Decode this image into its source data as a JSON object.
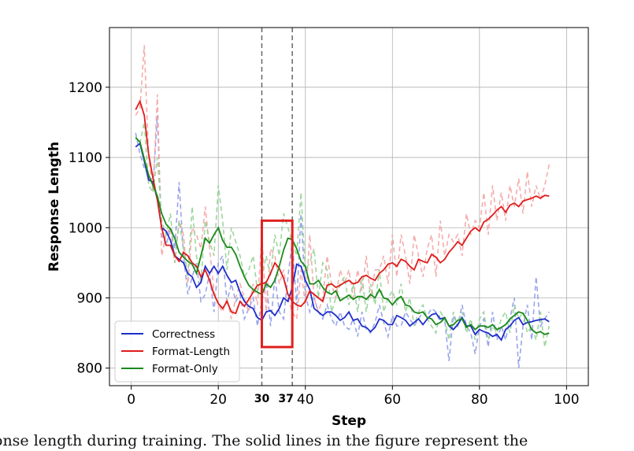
{
  "chart_data": {
    "type": "line",
    "xlabel": "Step",
    "ylabel": "Response Length",
    "xlim": [
      -5,
      105
    ],
    "ylim": [
      775,
      1285
    ],
    "xticks": [
      0,
      20,
      40,
      60,
      80,
      100
    ],
    "yticks": [
      800,
      900,
      1000,
      1100,
      1200
    ],
    "grid": true,
    "legend_position": "lower-left",
    "markers": {
      "lines": [
        30,
        37
      ],
      "labels": [
        "30",
        "37"
      ],
      "highlight_box": {
        "x": [
          30,
          37
        ],
        "y": [
          830,
          1010
        ],
        "color": "#e02020"
      }
    },
    "series": [
      {
        "name": "Correctness",
        "color": "#1f2ecc",
        "raw_color": "#8e9be8",
        "x": [
          1,
          2,
          3,
          4,
          5,
          6,
          7,
          8,
          9,
          10,
          11,
          12,
          13,
          14,
          15,
          16,
          17,
          18,
          19,
          20,
          21,
          22,
          23,
          24,
          25,
          26,
          27,
          28,
          29,
          30,
          31,
          32,
          33,
          34,
          35,
          36,
          37,
          38,
          39,
          40,
          41,
          42,
          43,
          44,
          45,
          46,
          47,
          48,
          49,
          50,
          51,
          52,
          53,
          54,
          55,
          56,
          57,
          58,
          59,
          60,
          61,
          62,
          63,
          64,
          65,
          66,
          67,
          68,
          69,
          70,
          71,
          72,
          73,
          74,
          75,
          76,
          77,
          78,
          79,
          80,
          81,
          82,
          83,
          84,
          85,
          86,
          87,
          88,
          89,
          90,
          91,
          92,
          93,
          94,
          95,
          96
        ],
        "values": [
          1115,
          1120,
          1095,
          1068,
          1065,
          1040,
          1000,
          995,
          982,
          960,
          955,
          950,
          935,
          930,
          915,
          922,
          945,
          935,
          945,
          935,
          945,
          932,
          922,
          925,
          908,
          895,
          888,
          885,
          872,
          868,
          880,
          882,
          875,
          885,
          900,
          895,
          915,
          948,
          945,
          925,
          912,
          885,
          880,
          875,
          880,
          880,
          875,
          868,
          872,
          880,
          868,
          870,
          860,
          858,
          852,
          858,
          870,
          868,
          862,
          862,
          875,
          872,
          868,
          860,
          865,
          870,
          862,
          870,
          876,
          878,
          870,
          872,
          860,
          855,
          862,
          872,
          860,
          860,
          848,
          855,
          852,
          850,
          845,
          848,
          840,
          855,
          860,
          868,
          872,
          862,
          865,
          866,
          868,
          869,
          870,
          866
        ],
        "raw": [
          1135,
          1105,
          1085,
          1075,
          1060,
          1160,
          990,
          975,
          1000,
          970,
          1065,
          960,
          905,
          930,
          950,
          895,
          905,
          935,
          880,
          950,
          960,
          895,
          920,
          895,
          905,
          870,
          885,
          900,
          860,
          895,
          925,
          860,
          930,
          880,
          870,
          930,
          980,
          890,
          1020,
          905,
          880,
          900,
          880,
          870,
          890,
          870,
          860,
          880,
          860,
          855,
          870,
          845,
          880,
          855,
          850,
          865,
          890,
          865,
          845,
          875,
          860,
          860,
          880,
          870,
          860,
          870,
          880,
          875,
          885,
          880,
          865,
          870,
          810,
          875,
          860,
          890,
          860,
          850,
          820,
          860,
          870,
          830,
          880,
          840,
          860,
          840,
          870,
          900,
          800,
          860,
          890,
          840,
          930,
          860,
          870,
          880
        ]
      },
      {
        "name": "Format-Length",
        "color": "#e01b1b",
        "raw_color": "#f4a3a3",
        "x": [
          1,
          2,
          3,
          4,
          5,
          6,
          7,
          8,
          9,
          10,
          11,
          12,
          13,
          14,
          15,
          16,
          17,
          18,
          19,
          20,
          21,
          22,
          23,
          24,
          25,
          26,
          27,
          28,
          29,
          30,
          31,
          32,
          33,
          34,
          35,
          36,
          37,
          38,
          39,
          40,
          41,
          42,
          43,
          44,
          45,
          46,
          47,
          48,
          49,
          50,
          51,
          52,
          53,
          54,
          55,
          56,
          57,
          58,
          59,
          60,
          61,
          62,
          63,
          64,
          65,
          66,
          67,
          68,
          69,
          70,
          71,
          72,
          73,
          74,
          75,
          76,
          77,
          78,
          79,
          80,
          81,
          82,
          83,
          84,
          85,
          86,
          87,
          88,
          89,
          90,
          91,
          92,
          93,
          94,
          95,
          96
        ],
        "values": [
          1168,
          1180,
          1160,
          1105,
          1070,
          1040,
          1000,
          975,
          975,
          960,
          952,
          965,
          960,
          950,
          945,
          930,
          940,
          925,
          905,
          892,
          885,
          895,
          880,
          878,
          895,
          888,
          898,
          908,
          918,
          920,
          922,
          935,
          950,
          942,
          928,
          905,
          895,
          890,
          888,
          895,
          910,
          905,
          900,
          895,
          918,
          920,
          915,
          918,
          922,
          925,
          920,
          922,
          930,
          932,
          928,
          925,
          935,
          940,
          948,
          950,
          945,
          955,
          952,
          945,
          940,
          955,
          952,
          950,
          962,
          958,
          950,
          955,
          965,
          972,
          980,
          975,
          985,
          995,
          1000,
          995,
          1008,
          1012,
          1018,
          1025,
          1030,
          1022,
          1032,
          1035,
          1030,
          1038,
          1040,
          1042,
          1045,
          1042,
          1046,
          1045
        ],
        "raw": [
          1160,
          1170,
          1260,
          1100,
          1050,
          1190,
          960,
          990,
          1000,
          950,
          1010,
          990,
          920,
          1000,
          990,
          970,
          1030,
          970,
          910,
          890,
          880,
          900,
          870,
          900,
          920,
          900,
          880,
          920,
          890,
          990,
          880,
          970,
          960,
          920,
          940,
          900,
          880,
          870,
          940,
          890,
          990,
          900,
          880,
          900,
          960,
          920,
          900,
          940,
          920,
          940,
          900,
          940,
          910,
          960,
          900,
          940,
          940,
          960,
          920,
          990,
          930,
          990,
          960,
          920,
          990,
          960,
          930,
          970,
          990,
          930,
          1010,
          960,
          990,
          980,
          990,
          960,
          1020,
          990,
          1010,
          1000,
          1050,
          990,
          1060,
          1010,
          1050,
          1010,
          1060,
          1030,
          1070,
          1020,
          1080,
          1030,
          1060,
          1040,
          1060,
          1090
        ]
      },
      {
        "name": "Format-Only",
        "color": "#1a8a1a",
        "raw_color": "#93d193",
        "x": [
          1,
          2,
          3,
          4,
          5,
          6,
          7,
          8,
          9,
          10,
          11,
          12,
          13,
          14,
          15,
          16,
          17,
          18,
          19,
          20,
          21,
          22,
          23,
          24,
          25,
          26,
          27,
          28,
          29,
          30,
          31,
          32,
          33,
          34,
          35,
          36,
          37,
          38,
          39,
          40,
          41,
          42,
          43,
          44,
          45,
          46,
          47,
          48,
          49,
          50,
          51,
          52,
          53,
          54,
          55,
          56,
          57,
          58,
          59,
          60,
          61,
          62,
          63,
          64,
          65,
          66,
          67,
          68,
          69,
          70,
          71,
          72,
          73,
          74,
          75,
          76,
          77,
          78,
          79,
          80,
          81,
          82,
          83,
          84,
          85,
          86,
          87,
          88,
          89,
          90,
          91,
          92,
          93,
          94,
          95,
          96
        ],
        "values": [
          1128,
          1122,
          1098,
          1075,
          1060,
          1045,
          1020,
          1005,
          998,
          985,
          965,
          958,
          952,
          948,
          935,
          960,
          985,
          978,
          990,
          1000,
          982,
          972,
          972,
          962,
          945,
          930,
          918,
          912,
          908,
          905,
          920,
          915,
          925,
          945,
          968,
          985,
          983,
          970,
          952,
          945,
          920,
          920,
          925,
          915,
          908,
          905,
          910,
          896,
          900,
          904,
          898,
          902,
          902,
          898,
          905,
          900,
          912,
          900,
          898,
          890,
          898,
          902,
          890,
          888,
          880,
          878,
          880,
          872,
          870,
          862,
          865,
          872,
          860,
          862,
          868,
          870,
          858,
          862,
          855,
          860,
          860,
          858,
          862,
          855,
          858,
          862,
          870,
          875,
          880,
          878,
          868,
          855,
          850,
          852,
          848,
          850
        ],
        "raw": [
          1130,
          1120,
          1150,
          1060,
          1050,
          1100,
          1010,
          990,
          1020,
          950,
          1010,
          970,
          930,
          1030,
          960,
          920,
          1010,
          980,
          960,
          1060,
          1010,
          940,
          1000,
          980,
          960,
          930,
          940,
          960,
          910,
          930,
          960,
          930,
          990,
          960,
          1020,
          1000,
          980,
          960,
          1050,
          940,
          950,
          970,
          900,
          950,
          940,
          880,
          900,
          920,
          930,
          890,
          920,
          880,
          930,
          880,
          920,
          890,
          940,
          880,
          900,
          910,
          890,
          920,
          880,
          900,
          860,
          880,
          890,
          870,
          860,
          850,
          880,
          870,
          840,
          880,
          860,
          880,
          850,
          870,
          840,
          870,
          880,
          840,
          860,
          850,
          870,
          880,
          850,
          890,
          870,
          880,
          850,
          860,
          840,
          880,
          830,
          860
        ]
      }
    ]
  },
  "caption": "onse length during training. The solid lines in the figure represent the"
}
